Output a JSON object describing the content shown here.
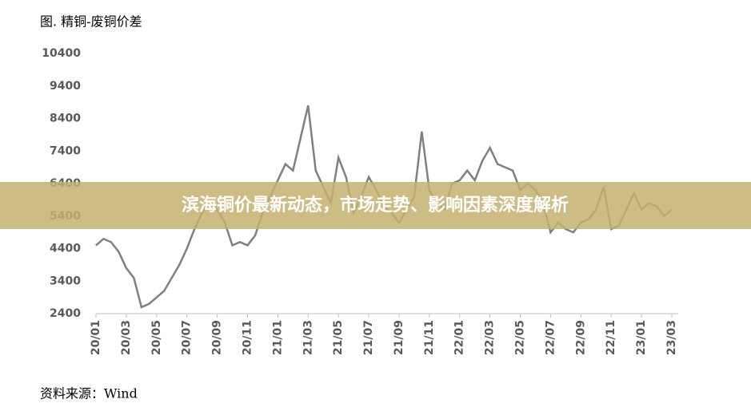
{
  "chart_data": {
    "type": "line",
    "title": "图. 精铜-废铜价差",
    "source": "资料来源：Wind",
    "banner": "滨海铜价最新动态，市场走势、影响因素深度解析",
    "categories": [
      "20/01",
      null,
      null,
      null,
      "20/03",
      null,
      null,
      null,
      "20/05",
      null,
      null,
      null,
      "20/07",
      null,
      null,
      null,
      "20/09",
      null,
      null,
      null,
      "20/11",
      null,
      null,
      null,
      "21/01",
      null,
      null,
      null,
      "21/03",
      null,
      null,
      null,
      "21/05",
      null,
      null,
      null,
      "21/07",
      null,
      null,
      null,
      "21/09",
      null,
      null,
      null,
      "21/11",
      null,
      null,
      null,
      "22/01",
      null,
      null,
      null,
      "22/03",
      null,
      null,
      null,
      "22/05",
      null,
      null,
      null,
      "22/07",
      null,
      null,
      null,
      "22/09",
      null,
      null,
      null,
      "22/11",
      null,
      null,
      null,
      "23/01",
      null,
      null,
      null,
      "23/03"
    ],
    "series": [
      {
        "color": "#808080",
        "values": [
          4500,
          4700,
          4600,
          4300,
          3800,
          3500,
          2600,
          2700,
          2900,
          3100,
          3500,
          3900,
          4400,
          5000,
          5500,
          5800,
          5600,
          5200,
          4500,
          4600,
          4500,
          4800,
          5500,
          6000,
          6500,
          7000,
          6800,
          7800,
          8800,
          6800,
          6300,
          5800,
          7200,
          6600,
          5500,
          6000,
          6600,
          6200,
          5700,
          5500,
          5200,
          5600,
          6000,
          8000,
          6200,
          5800,
          5600,
          6400,
          6500,
          6800,
          6500,
          7100,
          7500,
          7000,
          6900,
          6800,
          6200,
          6400,
          6200,
          5800,
          4900,
          5200,
          5000,
          4900,
          5200,
          5300,
          5600,
          6300,
          5000,
          5100,
          5600,
          6100,
          5600,
          5800,
          5700,
          5400,
          5600
        ]
      }
    ],
    "ylim": [
      2400,
      10400
    ],
    "yticks": [
      2400,
      3400,
      4400,
      5400,
      6400,
      7400,
      8400,
      9400,
      10400
    ]
  }
}
